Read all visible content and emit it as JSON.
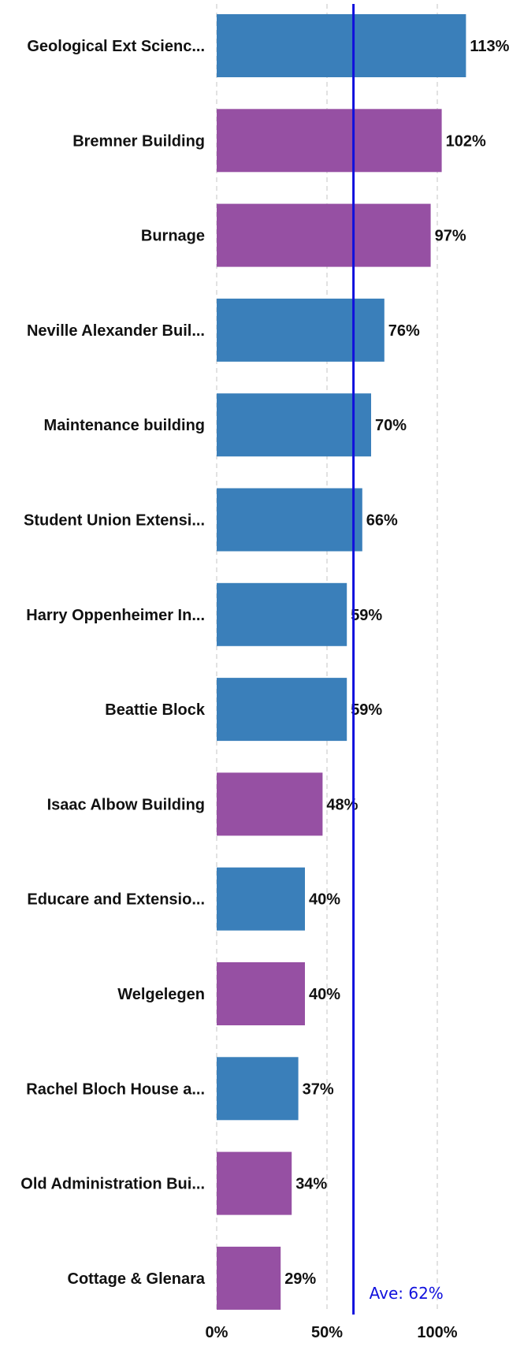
{
  "chart_data": {
    "type": "bar",
    "orientation": "horizontal",
    "categories": [
      "Geological Ext Scienc...",
      "Bremner Building",
      "Burnage",
      "Neville Alexander Buil...",
      "Maintenance building",
      "Student Union Extensi...",
      "Harry Oppenheimer In...",
      "Beattie Block",
      "Isaac Albow Building",
      "Educare and Extensio...",
      "Welgelegen",
      "Rachel Bloch House a...",
      "Old Administration Bui...",
      "Cottage & Glenara"
    ],
    "values": [
      113,
      102,
      97,
      76,
      70,
      66,
      59,
      59,
      48,
      40,
      40,
      37,
      34,
      29
    ],
    "value_labels": [
      "113%",
      "102%",
      "97%",
      "76%",
      "70%",
      "66%",
      "59%",
      "59%",
      "48%",
      "40%",
      "40%",
      "37%",
      "34%",
      "29%"
    ],
    "bar_colors": [
      "#3a7fba",
      "#9650a3",
      "#9650a3",
      "#3a7fba",
      "#3a7fba",
      "#3a7fba",
      "#3a7fba",
      "#3a7fba",
      "#9650a3",
      "#3a7fba",
      "#9650a3",
      "#3a7fba",
      "#9650a3",
      "#9650a3"
    ],
    "xlim": [
      0,
      120
    ],
    "x_ticks": [
      0,
      50,
      100
    ],
    "x_tick_labels": [
      "0%",
      "50%",
      "100%"
    ],
    "grid": true,
    "average": {
      "value": 62,
      "label": "Ave: 62%",
      "color": "#1010dd"
    }
  }
}
